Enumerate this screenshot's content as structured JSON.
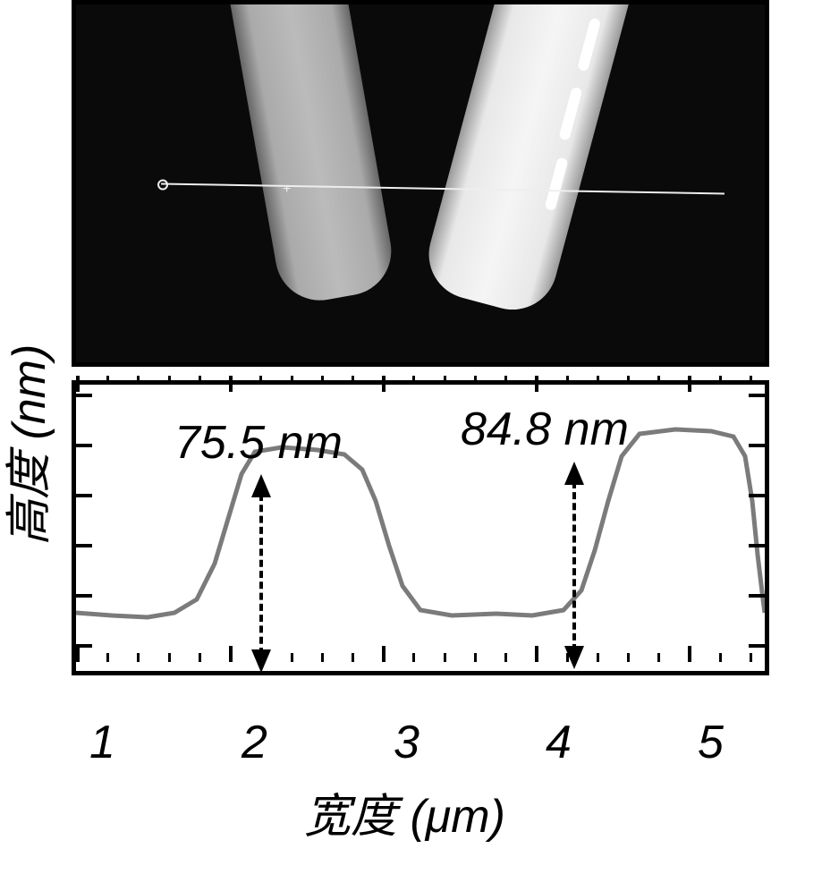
{
  "afm_image": {
    "background_color": "#0a0a0a",
    "scanline_color": "#eeeeee",
    "nanowires": [
      {
        "id": "wire1",
        "tilt_deg": -10,
        "brightness": "medium",
        "gradient": [
          "#666666",
          "#aaaaaa",
          "#bbbbbb",
          "#aaaaaa",
          "#666666"
        ]
      },
      {
        "id": "wire2",
        "tilt_deg": 15,
        "brightness": "bright",
        "gradient": [
          "#999999",
          "#e8e8e8",
          "#f5f5f5",
          "#e8e8e8",
          "#999999"
        ]
      }
    ]
  },
  "chart": {
    "type": "line",
    "x_label": "宽度 (μm)",
    "y_label": "高度 (nm)",
    "x_range": [
      1,
      5.5
    ],
    "x_ticks_major": [
      1,
      2,
      3,
      4,
      5
    ],
    "x_ticks_minor_step": 0.2,
    "profile_color": "#7b7b7b",
    "profile_stroke_width": 5,
    "border_color": "#000000",
    "border_width": 5,
    "font_size_labels": 52,
    "font_size_annotations": 52,
    "peaks": [
      {
        "label": "75.5 nm",
        "height_nm": 75.5,
        "x_um": 2.0
      },
      {
        "label": "84.8 nm",
        "height_nm": 84.8,
        "x_um": 4.6
      }
    ],
    "profile_points": [
      [
        0,
        255
      ],
      [
        40,
        258
      ],
      [
        80,
        260
      ],
      [
        110,
        255
      ],
      [
        135,
        240
      ],
      [
        155,
        200
      ],
      [
        170,
        150
      ],
      [
        185,
        100
      ],
      [
        200,
        75
      ],
      [
        230,
        70
      ],
      [
        270,
        73
      ],
      [
        300,
        78
      ],
      [
        320,
        95
      ],
      [
        335,
        130
      ],
      [
        350,
        180
      ],
      [
        365,
        225
      ],
      [
        385,
        252
      ],
      [
        420,
        258
      ],
      [
        470,
        256
      ],
      [
        510,
        258
      ],
      [
        545,
        252
      ],
      [
        565,
        230
      ],
      [
        580,
        185
      ],
      [
        595,
        130
      ],
      [
        610,
        80
      ],
      [
        630,
        55
      ],
      [
        670,
        50
      ],
      [
        710,
        52
      ],
      [
        735,
        58
      ],
      [
        748,
        80
      ],
      [
        756,
        130
      ],
      [
        762,
        190
      ],
      [
        768,
        240
      ],
      [
        770,
        255
      ]
    ]
  }
}
